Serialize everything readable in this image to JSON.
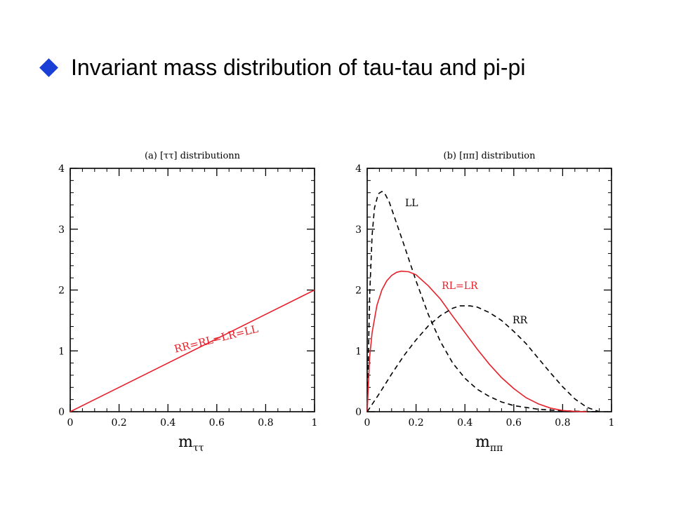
{
  "slide": {
    "title": "Invariant mass distribution of tau-tau and pi-pi",
    "bullet_icon": "diamond-bullet-icon",
    "bullet_color": "#1a3fd6"
  },
  "chart_data": [
    {
      "type": "line",
      "title": "(a) [ττ] distributionn",
      "xlabel": "m",
      "xlabel_sub": "ττ",
      "ylabel": "",
      "xlim": [
        0,
        1
      ],
      "ylim": [
        0,
        4
      ],
      "xticks": [
        "0",
        "0.2",
        "0.4",
        "0.6",
        "0.8",
        "1"
      ],
      "yticks": [
        "0",
        "1",
        "2",
        "3",
        "4"
      ],
      "xtick_values": [
        0,
        0.2,
        0.4,
        0.6,
        0.8,
        1
      ],
      "ytick_values": [
        0,
        1,
        2,
        3,
        4
      ],
      "series": [
        {
          "name": "RR=RL=LR=LL",
          "color": "#e8202a",
          "dash": "solid",
          "x": [
            0,
            1
          ],
          "y": [
            0,
            2
          ]
        }
      ]
    },
    {
      "type": "line",
      "title": "(b) [ππ] distribution",
      "xlabel": "m",
      "xlabel_sub": "ππ",
      "ylabel": "",
      "xlim": [
        0,
        1
      ],
      "ylim": [
        0,
        4
      ],
      "xticks": [
        "0",
        "0.2",
        "0.4",
        "0.6",
        "0.8",
        "1"
      ],
      "yticks": [
        "0",
        "1",
        "2",
        "3",
        "4"
      ],
      "xtick_values": [
        0,
        0.2,
        0.4,
        0.6,
        0.8,
        1
      ],
      "ytick_values": [
        0,
        1,
        2,
        3,
        4
      ],
      "series": [
        {
          "name": "LL",
          "color": "#000000",
          "dash": "dashed",
          "x": [
            0,
            0.01,
            0.02,
            0.03,
            0.045,
            0.06,
            0.07,
            0.09,
            0.12,
            0.15,
            0.2,
            0.25,
            0.3,
            0.35,
            0.4,
            0.45,
            0.5,
            0.55,
            0.6,
            0.7,
            0.8,
            0.9,
            0.95
          ],
          "y": [
            0,
            1.9,
            2.9,
            3.35,
            3.58,
            3.62,
            3.6,
            3.45,
            3.1,
            2.75,
            2.15,
            1.6,
            1.15,
            0.8,
            0.55,
            0.37,
            0.25,
            0.16,
            0.1,
            0.04,
            0.015,
            0.003,
            0
          ]
        },
        {
          "name": "RL=LR",
          "color": "#e8202a",
          "dash": "solid",
          "x": [
            0,
            0.01,
            0.02,
            0.04,
            0.06,
            0.08,
            0.1,
            0.12,
            0.14,
            0.17,
            0.2,
            0.25,
            0.3,
            0.35,
            0.4,
            0.45,
            0.5,
            0.55,
            0.6,
            0.65,
            0.7,
            0.75,
            0.8,
            0.85,
            0.9
          ],
          "y": [
            0,
            0.9,
            1.3,
            1.75,
            2.0,
            2.15,
            2.24,
            2.29,
            2.31,
            2.3,
            2.25,
            2.07,
            1.85,
            1.57,
            1.3,
            1.03,
            0.78,
            0.56,
            0.38,
            0.23,
            0.13,
            0.06,
            0.02,
            0.005,
            0
          ]
        },
        {
          "name": "RR",
          "color": "#000000",
          "dash": "dashed",
          "x": [
            0,
            0.05,
            0.1,
            0.15,
            0.2,
            0.25,
            0.3,
            0.35,
            0.38,
            0.42,
            0.45,
            0.5,
            0.55,
            0.6,
            0.65,
            0.7,
            0.75,
            0.8,
            0.85,
            0.9,
            0.95
          ],
          "y": [
            0,
            0.3,
            0.62,
            0.92,
            1.18,
            1.41,
            1.58,
            1.7,
            1.74,
            1.74,
            1.72,
            1.63,
            1.5,
            1.32,
            1.12,
            0.88,
            0.64,
            0.41,
            0.21,
            0.07,
            0
          ]
        }
      ]
    }
  ]
}
